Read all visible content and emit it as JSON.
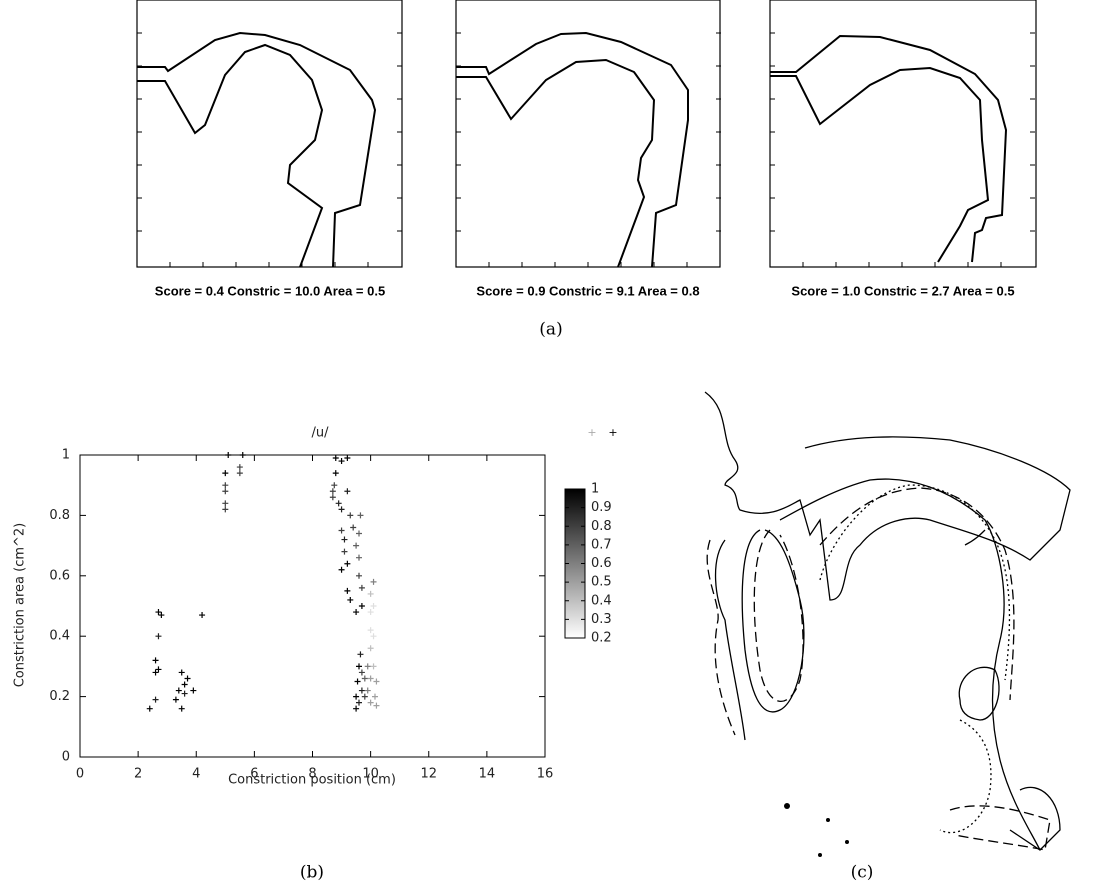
{
  "panel_a": {
    "scores": [
      "Score = 0.4  Constric = 10.0  Area = 0.5",
      "Score = 0.9  Constric = 9.1  Area = 0.8",
      "Score = 1.0  Constric = 2.7  Area = 0.5"
    ],
    "caption": "(a)"
  },
  "panel_c": {
    "caption": "(c)"
  },
  "chart_data": {
    "type": "scatter",
    "title": "/u/",
    "caption": "(b)",
    "x_label": "Constriction position (cm)",
    "y_label": "Constriction area (cm^2)",
    "xlim": [
      0,
      16
    ],
    "xticks": [
      0,
      2,
      4,
      6,
      8,
      10,
      12,
      14,
      16
    ],
    "ylim": [
      0,
      1
    ],
    "yticks": [
      0,
      0.2,
      0.4,
      0.6,
      0.8,
      1
    ],
    "colorbar": {
      "lim": [
        0.2,
        1
      ],
      "ticks": [
        1,
        0.9,
        0.8,
        0.7,
        0.6,
        0.5,
        0.4,
        0.3,
        0.2
      ]
    },
    "x": [
      2.4,
      2.6,
      2.6,
      2.6,
      2.7,
      2.7,
      2.8,
      2.7,
      3.3,
      3.4,
      3.5,
      3.5,
      3.6,
      3.7,
      3.6,
      3.9,
      4.2,
      5,
      5,
      5,
      5,
      5,
      5.1,
      5.5,
      5.5,
      5.6,
      8.7,
      8.7,
      8.75,
      8.8,
      8.8,
      9.0,
      9.2,
      8.9,
      9.0,
      9.0,
      9.1,
      9.1,
      9.0,
      9.2,
      9.2,
      9.3,
      9.2,
      9.3,
      9.4,
      9.5,
      9.6,
      9.6,
      9.65,
      9.6,
      9.7,
      9.7,
      9.5,
      9.6,
      9.55,
      9.5,
      9.5,
      9.6,
      9.7,
      9.7,
      9.65,
      9.8,
      9.8,
      9.9,
      9.9,
      10.0,
      10.0,
      10.0,
      10.0,
      10.0,
      10.0,
      10.1,
      10.1,
      10.1,
      10.1,
      10.15,
      10.2,
      10.2
    ],
    "y": [
      0.16,
      0.19,
      0.28,
      0.32,
      0.29,
      0.4,
      0.47,
      0.48,
      0.19,
      0.22,
      0.28,
      0.16,
      0.24,
      0.26,
      0.21,
      0.22,
      0.47,
      0.82,
      0.84,
      0.88,
      0.9,
      0.94,
      1,
      0.94,
      0.96,
      1,
      0.86,
      0.88,
      0.9,
      0.94,
      0.99,
      0.98,
      0.99,
      0.84,
      0.82,
      0.75,
      0.72,
      0.68,
      0.62,
      0.64,
      0.55,
      0.52,
      0.88,
      0.8,
      0.76,
      0.7,
      0.66,
      0.6,
      0.8,
      0.74,
      0.56,
      0.5,
      0.48,
      0.3,
      0.25,
      0.2,
      0.16,
      0.18,
      0.22,
      0.28,
      0.34,
      0.2,
      0.26,
      0.3,
      0.22,
      0.18,
      0.26,
      0.36,
      0.42,
      0.48,
      0.54,
      0.58,
      0.5,
      0.4,
      0.3,
      0.2,
      0.17,
      0.25
    ],
    "c": [
      1,
      0.9,
      1,
      1,
      1,
      0.9,
      1,
      1,
      1,
      1,
      1,
      1,
      1,
      1,
      0.9,
      1,
      1,
      0.8,
      0.8,
      0.8,
      0.8,
      1,
      1,
      0.8,
      0.8,
      1,
      0.8,
      0.8,
      0.8,
      1,
      1,
      1,
      1,
      0.9,
      0.9,
      0.8,
      0.9,
      0.8,
      1,
      1,
      1,
      1,
      0.9,
      0.8,
      0.8,
      0.7,
      0.7,
      0.8,
      0.7,
      0.7,
      0.8,
      1,
      1,
      1,
      1,
      1,
      1,
      0.9,
      0.9,
      0.8,
      0.9,
      0.8,
      0.7,
      0.6,
      0.6,
      0.5,
      0.5,
      0.4,
      0.3,
      0.3,
      0.4,
      0.6,
      0.3,
      0.3,
      0.4,
      0.5,
      0.5,
      0.5
    ]
  }
}
